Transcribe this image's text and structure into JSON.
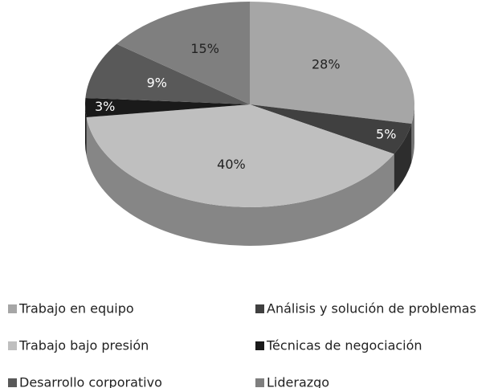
{
  "chart_data": {
    "type": "pie",
    "categories": [
      "Trabajo en equipo",
      "Análisis y solución de problemas",
      "Trabajo bajo presión",
      "Técnicas de negociación",
      "Desarrollo corporativo",
      "Liderazgo"
    ],
    "values": [
      28,
      5,
      40,
      3,
      9,
      15
    ],
    "value_labels": [
      "28%",
      "5%",
      "40%",
      "3%",
      "9%",
      "15%"
    ],
    "colors": [
      "#a6a6a6",
      "#404040",
      "#bfbfbf",
      "#1a1a1a",
      "#595959",
      "#7f7f7f"
    ],
    "legend": "bottom"
  }
}
